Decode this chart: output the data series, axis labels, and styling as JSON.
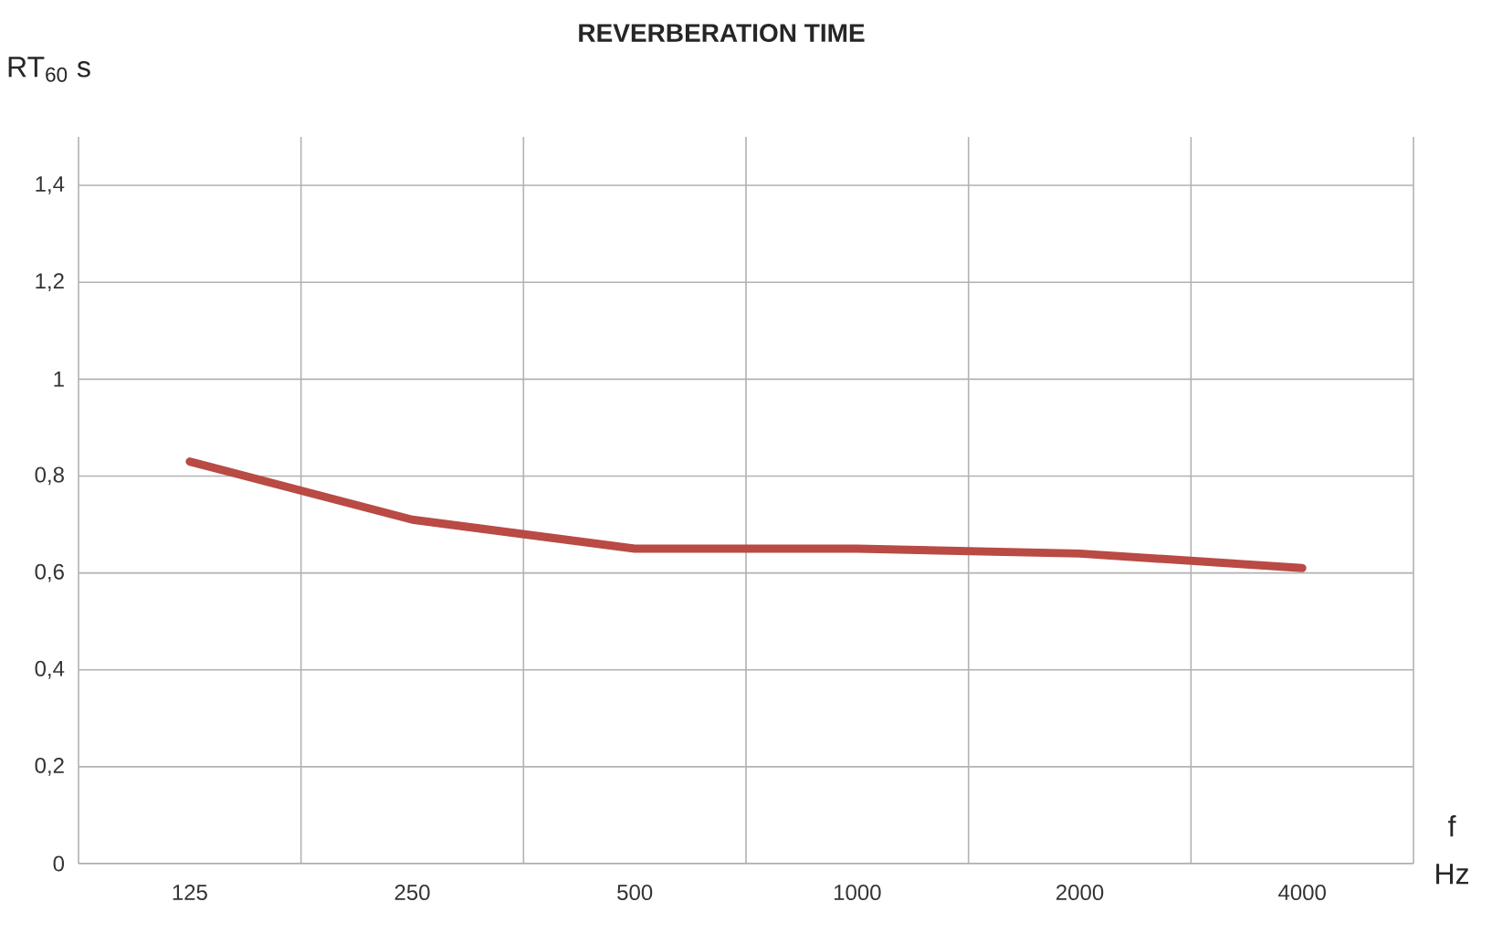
{
  "chart_data": {
    "type": "line",
    "title": "**REVERBERATION TIME**",
    "xlabel": "f Hz",
    "ylabel": "RT$_{60}$ s",
    "categories": [
      "125",
      "250",
      "500",
      "1000",
      "2000",
      "4000"
    ],
    "series": [
      {
        "color": "#b94a44",
        "values": [
          0.83,
          0.71,
          0.65,
          0.65,
          0.64,
          0.61
        ]
      }
    ],
    "ylim": [
      0,
      1.5
    ],
    "yticks": [
      0,
      {
        "value": 0.2,
        "label": "0,2"
      },
      {
        "value": 0.4,
        "label": "0,4"
      },
      {
        "value": 0.6,
        "label": "0,6"
      },
      {
        "value": 0.8,
        "label": "0,8"
      },
      1,
      {
        "value": 1.2,
        "label": "1,2"
      },
      {
        "value": 1.4,
        "label": "1,4"
      }
    ],
    "grid": true,
    "marker": "none",
    "line_style": "solid"
  }
}
